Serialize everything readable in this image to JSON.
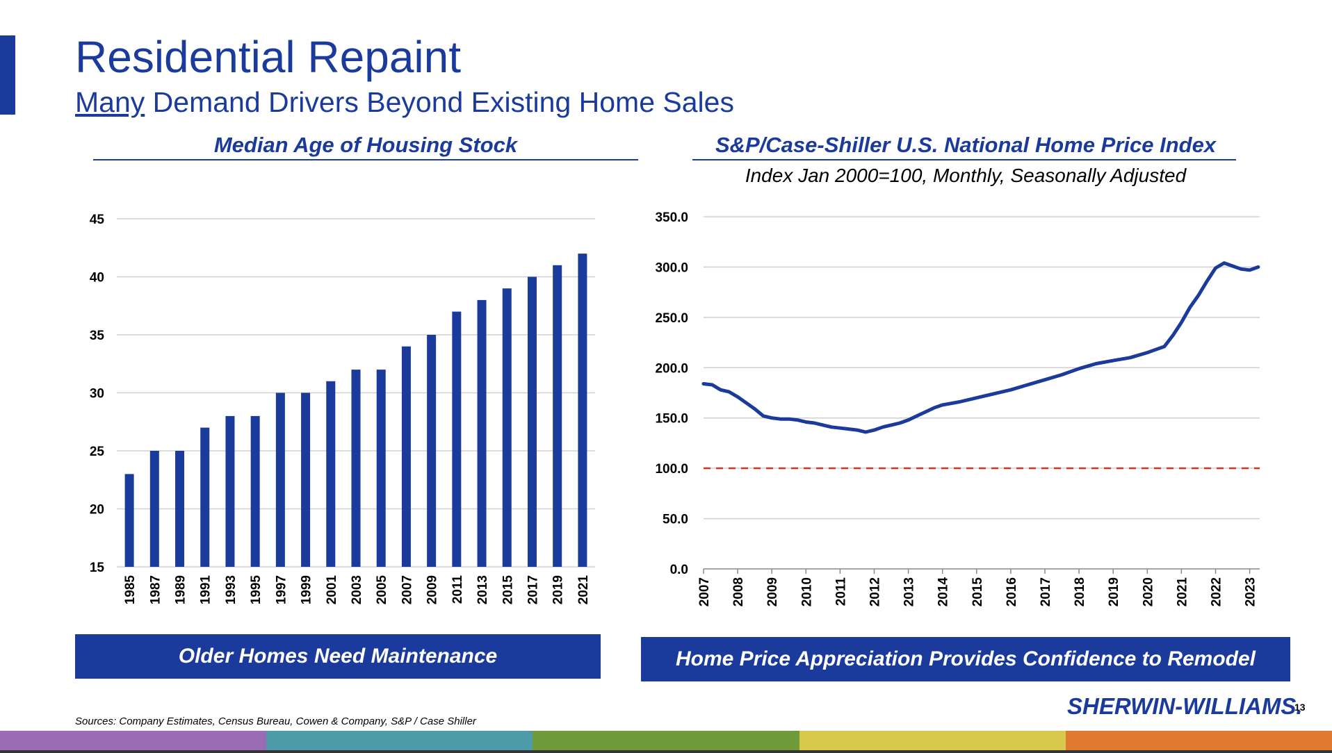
{
  "slide": {
    "title": "Residential Repaint",
    "subtitle_underlined": "Many",
    "subtitle_rest": " Demand Drivers Beyond Existing Home Sales",
    "sources": "Sources: Company Estimates, Census Bureau, Cowen & Company, S&P / Case Shiller",
    "logo": "SHERWIN-WILLIAMS.",
    "page_number": "13",
    "accent_color": "#1a3a9c",
    "stripe_colors": [
      "#9b6bb3",
      "#4d9aa9",
      "#6f9a3a",
      "#d7c94b",
      "#e07a2e"
    ]
  },
  "left_panel": {
    "heading": "Median Age of Housing Stock",
    "callout": "Older Homes Need Maintenance"
  },
  "right_panel": {
    "heading": "S&P/Case-Shiller U.S. National Home Price Index",
    "subheading": "Index Jan 2000=100, Monthly, Seasonally Adjusted",
    "callout": "Home Price Appreciation Provides Confidence to Remodel"
  },
  "chart_data": [
    {
      "type": "bar",
      "title": "Median Age of Housing Stock",
      "categories": [
        "1985",
        "1987",
        "1989",
        "1991",
        "1993",
        "1995",
        "1997",
        "1999",
        "2001",
        "2003",
        "2005",
        "2007",
        "2009",
        "2011",
        "2013",
        "2015",
        "2017",
        "2019",
        "2021"
      ],
      "values": [
        23,
        25,
        25,
        27,
        28,
        28,
        30,
        30,
        31,
        32,
        32,
        34,
        35,
        37,
        38,
        39,
        40,
        41,
        42
      ],
      "ylim": [
        15,
        45
      ],
      "yticks": [
        15,
        20,
        25,
        30,
        35,
        40,
        45
      ],
      "grid": true,
      "bar_color": "#1a3a9c"
    },
    {
      "type": "line",
      "title": "S&P/Case-Shiller U.S. National Home Price Index",
      "subtitle": "Index Jan 2000=100, Monthly, Seasonally Adjusted",
      "x": [
        2007.0,
        2007.25,
        2007.5,
        2007.75,
        2008.0,
        2008.25,
        2008.5,
        2008.75,
        2009.0,
        2009.25,
        2009.5,
        2009.75,
        2010.0,
        2010.25,
        2010.5,
        2010.75,
        2011.0,
        2011.25,
        2011.5,
        2011.75,
        2012.0,
        2012.25,
        2012.5,
        2012.75,
        2013.0,
        2013.25,
        2013.5,
        2013.75,
        2014.0,
        2014.5,
        2015.0,
        2015.5,
        2016.0,
        2016.5,
        2017.0,
        2017.5,
        2018.0,
        2018.5,
        2019.0,
        2019.5,
        2020.0,
        2020.25,
        2020.5,
        2020.75,
        2021.0,
        2021.25,
        2021.5,
        2021.75,
        2022.0,
        2022.25,
        2022.5,
        2022.75,
        2023.0,
        2023.25
      ],
      "values": [
        184,
        183,
        178,
        176,
        171,
        165,
        159,
        152,
        150,
        149,
        149,
        148,
        146,
        145,
        143,
        141,
        140,
        139,
        138,
        136,
        138,
        141,
        143,
        145,
        148,
        152,
        156,
        160,
        163,
        166,
        170,
        174,
        178,
        183,
        188,
        193,
        199,
        204,
        207,
        210,
        215,
        218,
        221,
        232,
        245,
        260,
        272,
        286,
        299,
        304,
        301,
        298,
        297,
        300
      ],
      "series_name": "",
      "ylim": [
        0,
        350
      ],
      "yticks": [
        0,
        50,
        100,
        150,
        200,
        250,
        300,
        350
      ],
      "xticks": [
        "2007",
        "2008",
        "2009",
        "2010",
        "2011",
        "2012",
        "2013",
        "2014",
        "2015",
        "2016",
        "2017",
        "2018",
        "2019",
        "2020",
        "2021",
        "2022",
        "2023"
      ],
      "xlim": [
        2007.0,
        2023.3
      ],
      "reference_line": 100,
      "reference_color": "#e03020",
      "line_color": "#1a3a9c",
      "grid": true
    }
  ]
}
